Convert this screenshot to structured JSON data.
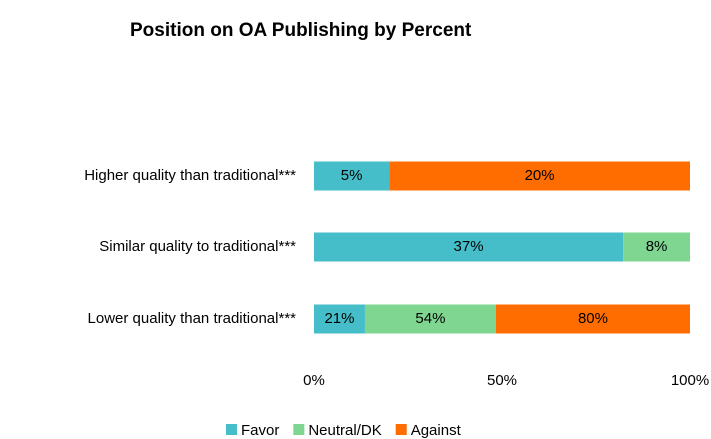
{
  "chart_data": {
    "type": "bar",
    "orientation": "horizontal",
    "stacking": "percent",
    "title": "Position on OA Publishing by Percent",
    "categories": [
      "Higher quality than traditional***",
      "Similar quality to traditional***",
      "Lower quality than traditional***"
    ],
    "series": [
      {
        "name": "Favor",
        "color": "#45bec9",
        "values": [
          5,
          37,
          21
        ],
        "value_labels": [
          "5%",
          "37%",
          "21%"
        ]
      },
      {
        "name": "Neutral/DK",
        "color": "#7ed691",
        "values": [
          null,
          8,
          54
        ],
        "value_labels": [
          null,
          "8%",
          "54%"
        ]
      },
      {
        "name": "Against",
        "color": "#ff6d00",
        "values": [
          20,
          null,
          80
        ],
        "value_labels": [
          "20%",
          null,
          "80%"
        ]
      }
    ],
    "xlim": [
      0,
      100
    ],
    "xticks": [
      {
        "value": 0,
        "label": "0%"
      },
      {
        "value": 50,
        "label": "50%"
      },
      {
        "value": 100,
        "label": "100%"
      }
    ],
    "legend": "bottom"
  }
}
